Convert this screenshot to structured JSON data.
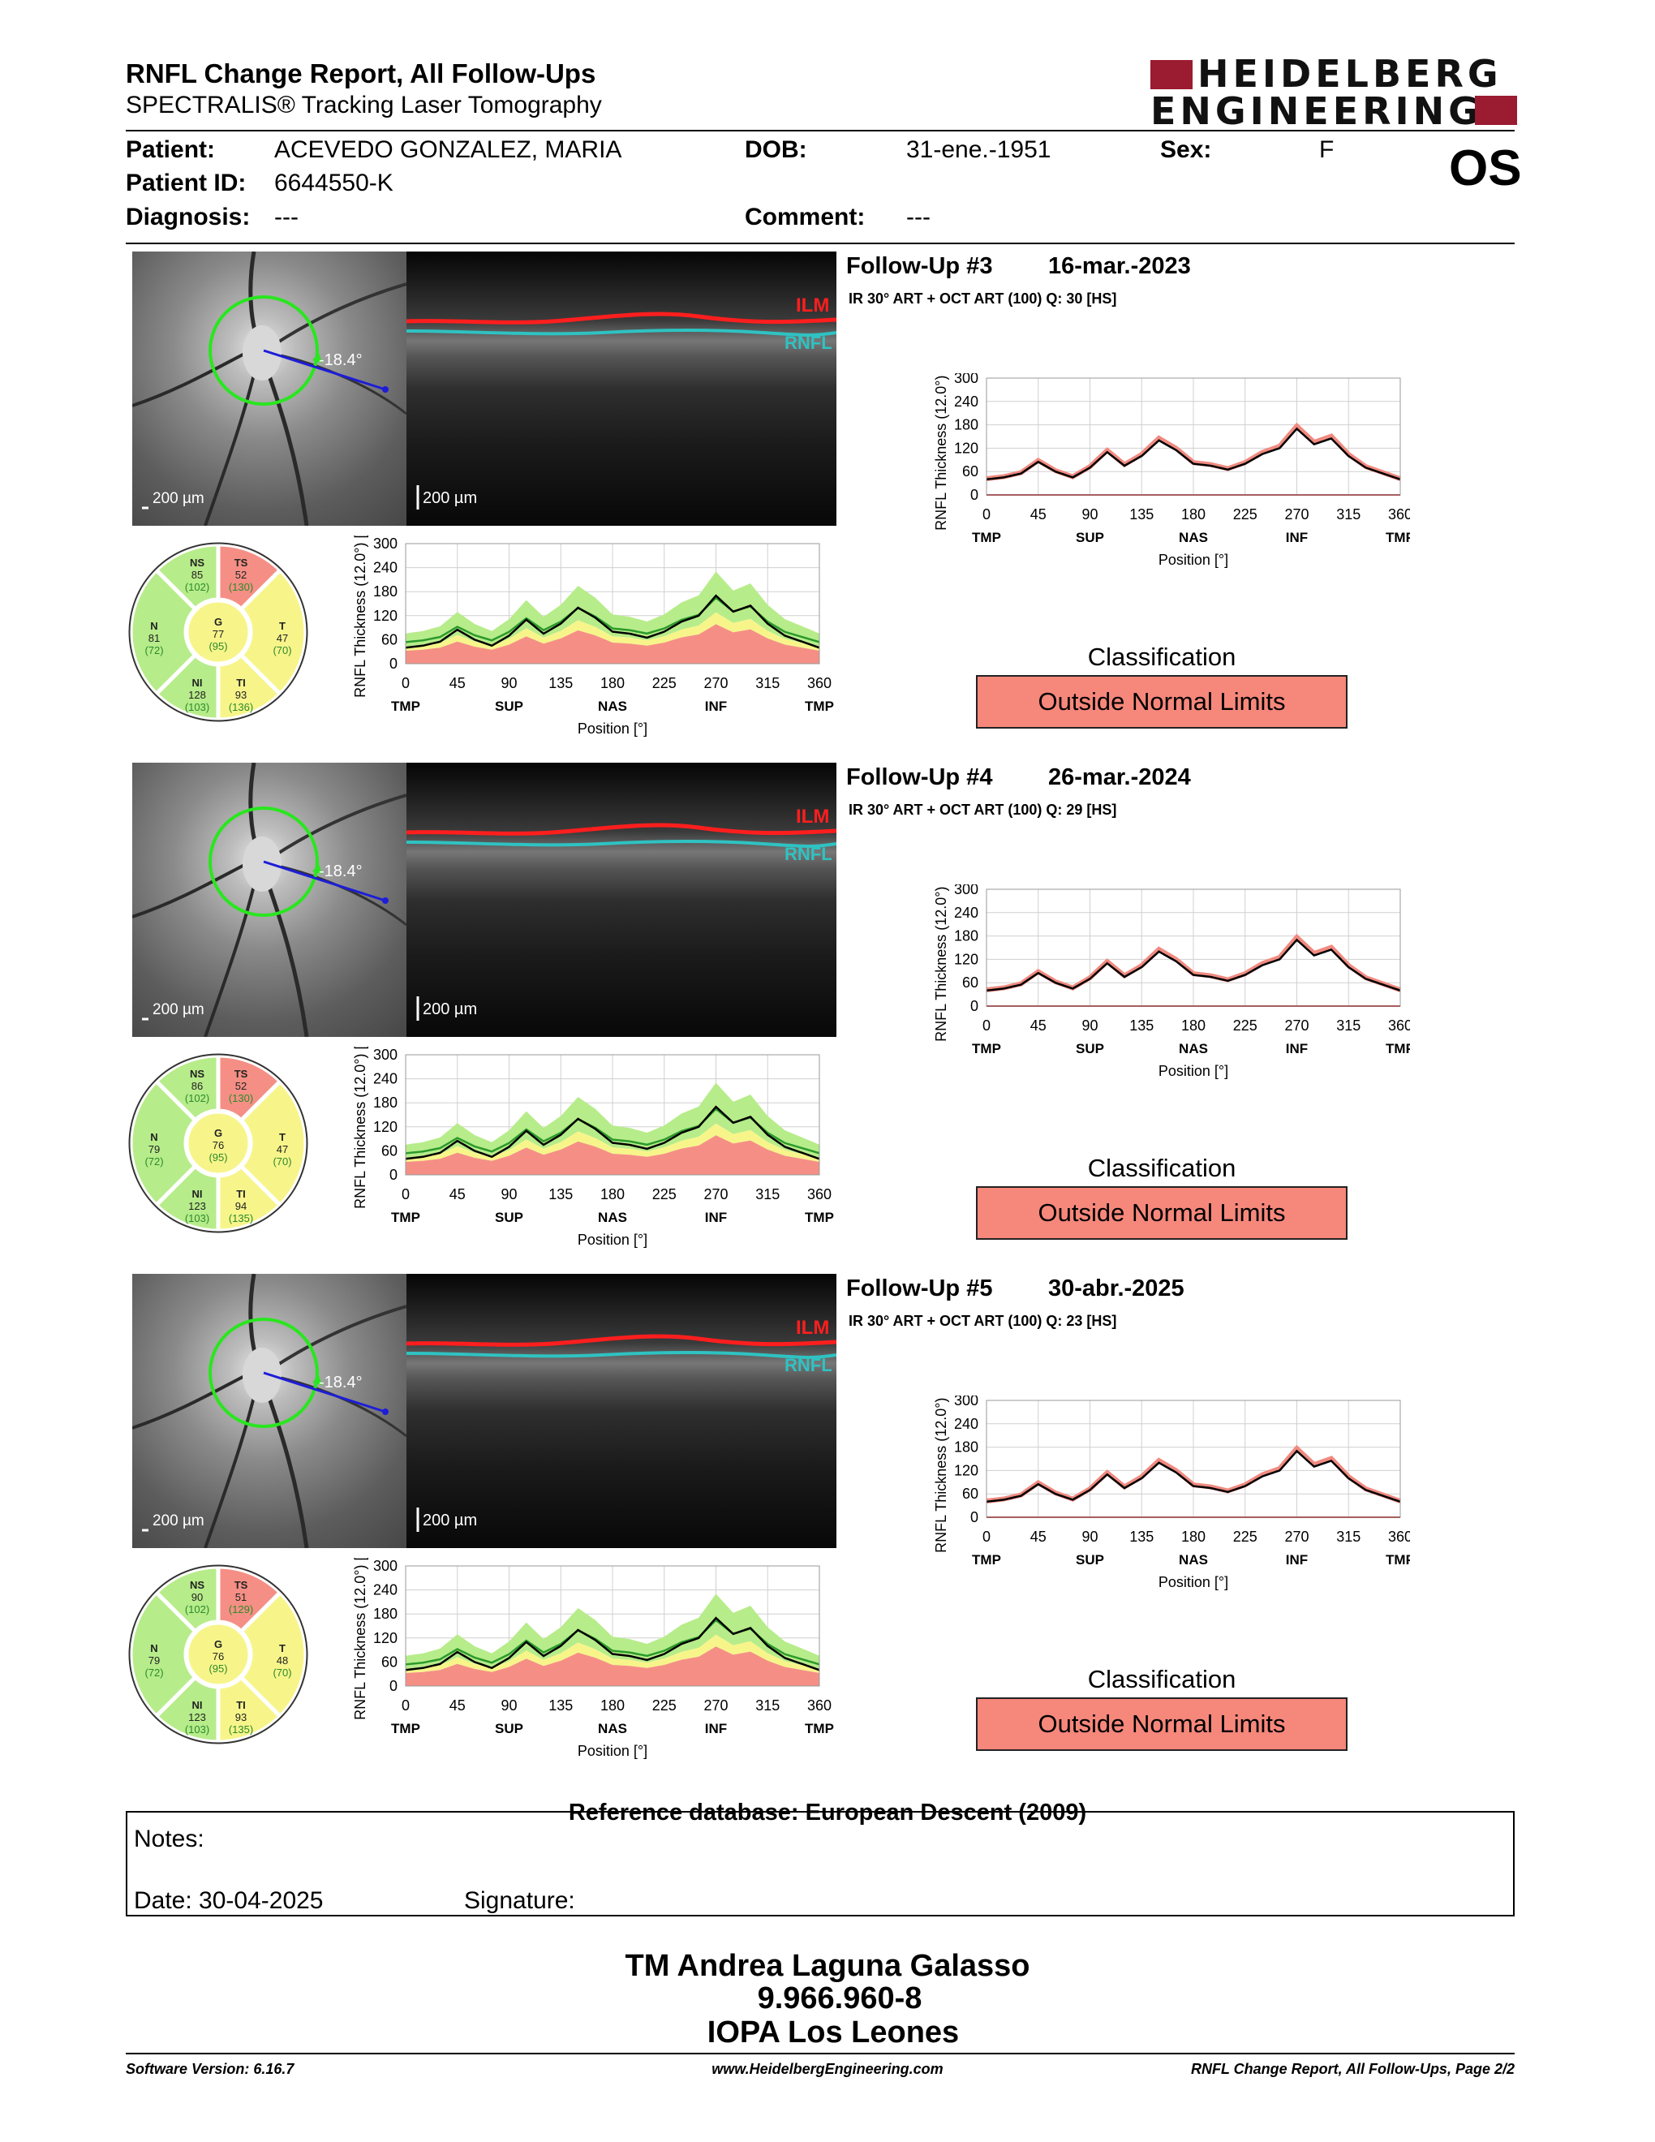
{
  "header": {
    "title": "RNFL Change Report, All Follow-Ups",
    "subtitle": "SPECTRALIS® Tracking Laser Tomography",
    "logo_line1": "HEIDELBERG",
    "logo_line2": "ENGINEERING",
    "eye": "OS"
  },
  "patient": {
    "patient_label": "Patient:",
    "patient_value": "ACEVEDO GONZALEZ, MARIA",
    "id_label": "Patient ID:",
    "id_value": "6644550-K",
    "diagnosis_label": "Diagnosis:",
    "diagnosis_value": "---",
    "dob_label": "DOB:",
    "dob_value": "31-ene.-1951",
    "comment_label": "Comment:",
    "comment_value": "---",
    "sex_label": "Sex:",
    "sex_value": "F"
  },
  "common": {
    "ylabel": "RNFL Thickness (12.0°) [µm]",
    "xlabel": "Position [°]",
    "y_ticks": [
      "300",
      "240",
      "180",
      "120",
      "60",
      "0"
    ],
    "x_ticks": [
      "0",
      "45",
      "90",
      "135",
      "180",
      "225",
      "270",
      "315",
      "360"
    ],
    "region_labels": [
      "TMP",
      "SUP",
      "NAS",
      "INF",
      "TMP"
    ],
    "classification_title": "Classification",
    "scale_bar": "200 µm",
    "angle": "-18.4°",
    "ilm": "ILM",
    "rnfl": "RNFL"
  },
  "followups": [
    {
      "title": "Follow-Up #3",
      "date": "16-mar.-2023",
      "acq": "IR 30° ART + OCT ART (100)  Q: 30 [HS]",
      "classification": "Outside Normal Limits",
      "sectors": {
        "NS": {
          "v": "85",
          "n": "(102)"
        },
        "TS": {
          "v": "52",
          "n": "(130)"
        },
        "N": {
          "v": "81",
          "n": "(72)"
        },
        "G": {
          "v": "77",
          "n": "(95)"
        },
        "T": {
          "v": "47",
          "n": "(70)"
        },
        "NI": {
          "v": "128",
          "n": "(103)"
        },
        "TI": {
          "v": "93",
          "n": "(136)"
        }
      }
    },
    {
      "title": "Follow-Up #4",
      "date": "26-mar.-2024",
      "acq": "IR 30° ART + OCT ART (100)  Q: 29 [HS]",
      "classification": "Outside Normal Limits",
      "sectors": {
        "NS": {
          "v": "86",
          "n": "(102)"
        },
        "TS": {
          "v": "52",
          "n": "(130)"
        },
        "N": {
          "v": "79",
          "n": "(72)"
        },
        "G": {
          "v": "76",
          "n": "(95)"
        },
        "T": {
          "v": "47",
          "n": "(70)"
        },
        "NI": {
          "v": "123",
          "n": "(103)"
        },
        "TI": {
          "v": "94",
          "n": "(135)"
        }
      }
    },
    {
      "title": "Follow-Up #5",
      "date": "30-abr.-2025",
      "acq": "IR 30° ART + OCT ART (100)  Q: 23 [HS]",
      "classification": "Outside Normal Limits",
      "sectors": {
        "NS": {
          "v": "90",
          "n": "(102)"
        },
        "TS": {
          "v": "51",
          "n": "(129)"
        },
        "N": {
          "v": "79",
          "n": "(72)"
        },
        "G": {
          "v": "76",
          "n": "(95)"
        },
        "T": {
          "v": "48",
          "n": "(70)"
        },
        "NI": {
          "v": "123",
          "n": "(103)"
        },
        "TI": {
          "v": "93",
          "n": "(135)"
        }
      }
    }
  ],
  "chart_data": [
    {
      "type": "line",
      "title": "",
      "xlabel": "Position [°]",
      "ylabel": "RNFL Thickness (12.0°) [µm]",
      "ylim": [
        0,
        300
      ],
      "xlim": [
        0,
        360
      ],
      "x": [
        0,
        15,
        30,
        45,
        60,
        75,
        90,
        105,
        120,
        135,
        150,
        165,
        180,
        195,
        210,
        225,
        240,
        255,
        270,
        285,
        300,
        315,
        330,
        345,
        360
      ],
      "series": [
        {
          "name": "",
          "values": [
            40,
            45,
            55,
            85,
            60,
            45,
            70,
            110,
            75,
            100,
            140,
            115,
            80,
            75,
            65,
            80,
            105,
            120,
            170,
            130,
            145,
            100,
            70,
            55,
            40
          ]
        }
      ]
    }
  ],
  "footer": {
    "refdb": "Reference database: European Descent (2009)",
    "notes_label": "Notes:",
    "date_label": "Date: 30-04-2025",
    "signature_label": "Signature:",
    "sig_name": "TM Andrea Laguna Galasso",
    "sig_id": "9.966.960-8",
    "sig_org": "IOPA Los Leones",
    "software": "Software Version: 6.16.7",
    "website": "www.HeidelbergEngineering.com",
    "page": "RNFL Change Report, All Follow-Ups, Page 2/2"
  }
}
